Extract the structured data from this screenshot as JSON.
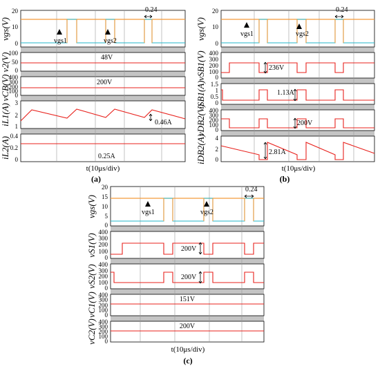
{
  "figure": {
    "panel_labels": [
      "(a)",
      "(b)",
      "(c)"
    ],
    "xlabel": "t(10μs/div)"
  },
  "colors": {
    "trace_red": "#e8201b",
    "trace_orange": "#f39a3b",
    "trace_cyan": "#22b7c9",
    "separator": "#c4c4c4",
    "frame": "#000000",
    "grid": "#9a9a9a"
  },
  "chart_data": [
    {
      "panel": "(a)",
      "type": "line",
      "xlabel": "t(10μs/div)",
      "x": [
        0,
        2.5,
        4,
        4.3,
        6.5,
        6.8,
        8.8,
        9
      ],
      "x_unit": "10μs/div",
      "subplots": [
        {
          "ylabel": "vgs(V)",
          "ylim": [
            0,
            20
          ],
          "yticks": [
            0,
            10,
            20
          ],
          "series": [
            {
              "color": "orange",
              "values": [
                15,
                15,
                15,
                15,
                15,
                15,
                15,
                15
              ]
            },
            {
              "color": "cyan",
              "values": [
                0,
                0,
                15,
                0,
                15,
                0,
                0,
                0
              ]
            }
          ],
          "annotations": [
            "vgs1",
            "vgs2",
            "0.24"
          ]
        },
        {
          "ylabel": "v2(V)",
          "ylim": [
            0,
            100
          ],
          "yticks": [
            0,
            50,
            100
          ],
          "series": [
            {
              "values": [
                48,
                48,
                48,
                48,
                48,
                48,
                48,
                48
              ]
            }
          ],
          "annotations": [
            "48V"
          ]
        },
        {
          "ylabel": "vCB(V)",
          "ylim": [
            0,
            400
          ],
          "yticks": [
            0,
            100,
            200,
            300,
            400
          ],
          "series": [
            {
              "values": [
                200,
                200,
                200,
                200,
                200,
                200,
                200,
                200
              ]
            }
          ],
          "annotations": [
            "200V"
          ]
        },
        {
          "ylabel": "iL1(A)",
          "ylim": [
            1,
            3
          ],
          "yticks": [
            1,
            2,
            3
          ],
          "series": [
            {
              "values": [
                1.85,
                2.3,
                1.85,
                2.3,
                1.85,
                2.3,
                1.85,
                1.9
              ]
            }
          ],
          "annotations": [
            "0.46A"
          ]
        },
        {
          "ylabel": "iL2(A)",
          "ylim": [
            0,
            0.4
          ],
          "yticks": [
            0,
            0.2,
            0.4
          ],
          "series": [
            {
              "values": [
                0.25,
                0.25,
                0.25,
                0.25,
                0.25,
                0.25,
                0.25,
                0.25
              ]
            }
          ],
          "annotations": [
            "0.25A"
          ]
        }
      ]
    },
    {
      "panel": "(b)",
      "type": "line",
      "xlabel": "t(10μs/div)",
      "x_unit": "10μs/div",
      "subplots": [
        {
          "ylabel": "vgs(V)",
          "ylim": [
            0,
            20
          ],
          "yticks": [
            0,
            10,
            20
          ],
          "annotations": [
            "vgs1",
            "vgs2",
            "0.24"
          ]
        },
        {
          "ylabel": "vSB1(V)",
          "ylim": [
            0,
            400
          ],
          "yticks": [
            0,
            100,
            200,
            300,
            400
          ],
          "high": 236,
          "low": 0,
          "annotations": [
            "236V"
          ]
        },
        {
          "ylabel": "iSB1(A)",
          "ylim": [
            0,
            1.5
          ],
          "yticks": [
            0,
            0.5,
            1,
            1.5
          ],
          "high": 1.13,
          "low": 0,
          "annotations": [
            "1.13A"
          ]
        },
        {
          "ylabel": "vDB2(V)",
          "ylim": [
            0,
            400
          ],
          "yticks": [
            0,
            100,
            200,
            300,
            400
          ],
          "high": 200,
          "low": 0,
          "annotations": [
            "200V"
          ]
        },
        {
          "ylabel": "iDB2(A)",
          "ylim": [
            0,
            4
          ],
          "yticks": [
            0,
            2,
            4
          ],
          "peak": 2.81,
          "low": 0,
          "annotations": [
            "2.81A"
          ]
        }
      ]
    },
    {
      "panel": "(c)",
      "type": "line",
      "xlabel": "t(10μs/div)",
      "x_unit": "10μs/div",
      "subplots": [
        {
          "ylabel": "vgs(V)",
          "ylim": [
            0,
            20
          ],
          "yticks": [
            0,
            5,
            10,
            15,
            20
          ],
          "annotations": [
            "vgs1",
            "vgs2",
            "0.24"
          ]
        },
        {
          "ylabel": "vS1(V)",
          "ylim": [
            0,
            400
          ],
          "yticks": [
            0,
            100,
            200,
            300,
            400
          ],
          "high": 200,
          "low": 0,
          "annotations": [
            "200V"
          ]
        },
        {
          "ylabel": "vS2(V)",
          "ylim": [
            0,
            400
          ],
          "yticks": [
            0,
            100,
            200,
            300,
            400
          ],
          "high": 200,
          "low": 0,
          "annotations": [
            "200V"
          ]
        },
        {
          "ylabel": "vC1(V)",
          "ylim": [
            0,
            400
          ],
          "yticks": [
            0,
            100,
            200,
            300,
            400
          ],
          "level": 151,
          "annotations": [
            "151V"
          ]
        },
        {
          "ylabel": "vC2(V)",
          "ylim": [
            0,
            400
          ],
          "yticks": [
            0,
            100,
            200,
            300,
            400
          ],
          "level": 200,
          "annotations": [
            "200V"
          ]
        }
      ]
    }
  ],
  "text": {
    "a": {
      "t1_ticks": [
        "20",
        "10",
        "0"
      ],
      "t2_ticks": [
        "100",
        "50",
        "0"
      ],
      "t3_ticks": [
        "400",
        "300",
        "200",
        "100",
        "0"
      ],
      "t4_ticks": [
        "3",
        "2",
        "1"
      ],
      "t5_ticks": [
        "0.4",
        "0.2",
        "0"
      ],
      "vgs1": "vgs1",
      "vgs2": "vgs2",
      "d024": "0.24",
      "v48": "48V",
      "v200": "200V",
      "i046": "0.46A",
      "i025": "0.25A",
      "y1": "vgs(V)",
      "y2": "v2(V)",
      "y3": "vCB(V)",
      "y4": "iL1(A)",
      "y5": "iL2(A)"
    },
    "b": {
      "t1_ticks": [
        "20",
        "10",
        "0"
      ],
      "t2_ticks": [
        "400",
        "300",
        "200",
        "100",
        "0"
      ],
      "t3_ticks": [
        "1.5",
        "1",
        "0.5",
        "0"
      ],
      "t4_ticks": [
        "400",
        "300",
        "200",
        "100",
        "0"
      ],
      "t5_ticks": [
        "4",
        "2",
        "0"
      ],
      "vgs1": "vgs1",
      "vgs2": "vgs2",
      "d024": "0.24",
      "v236": "236V",
      "i113": "1.13A",
      "v200": "200V",
      "i281": "2.81A",
      "y1": "vgs(V)",
      "y2": "vSB1(V)",
      "y3": "iSB1(A)",
      "y4": "vDB2(V)",
      "y5": "iDB2(A)"
    },
    "c": {
      "t1_ticks": [
        "20",
        "15",
        "10",
        "5",
        "0"
      ],
      "t2_ticks": [
        "400",
        "300",
        "200",
        "100",
        "0"
      ],
      "t3_ticks": [
        "400",
        "300",
        "200",
        "100",
        "0"
      ],
      "t4_ticks": [
        "400",
        "300",
        "200",
        "100",
        "0"
      ],
      "t5_ticks": [
        "400",
        "300",
        "200",
        "100",
        "0"
      ],
      "vgs1": "vgs1",
      "vgs2": "vgs2",
      "d024": "0.24",
      "v200a": "200V",
      "v200b": "200V",
      "v151": "151V",
      "v200c": "200V",
      "y1": "vgs(V)",
      "y2": "vS1(V)",
      "y3": "vS2(V)",
      "y4": "vC1(V)",
      "y5": "vC2(V)"
    }
  }
}
